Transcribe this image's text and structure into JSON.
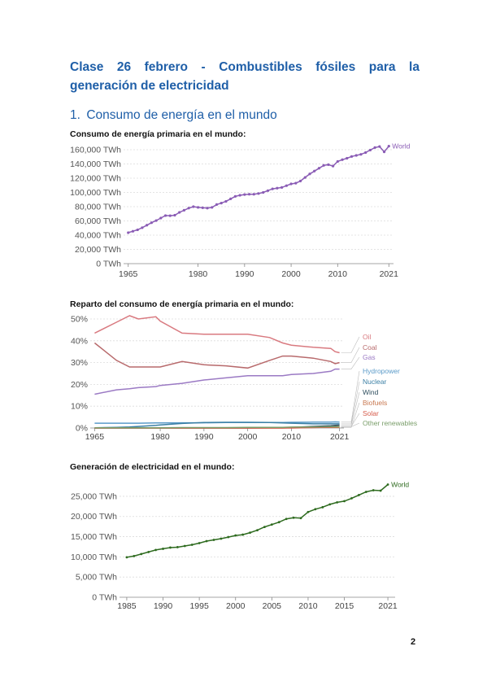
{
  "document": {
    "title": "Clase 26 febrero - Combustibles fósiles para la generación de electricidad",
    "section_number": "1.",
    "section_title": "Consumo de energía en el mundo",
    "page_number": "2"
  },
  "chart_data": [
    {
      "type": "line",
      "title": "Consumo de energía primaria en el mundo:",
      "x": [
        1965,
        1966,
        1967,
        1968,
        1969,
        1970,
        1971,
        1972,
        1973,
        1974,
        1975,
        1976,
        1977,
        1978,
        1979,
        1980,
        1981,
        1982,
        1983,
        1984,
        1985,
        1986,
        1987,
        1988,
        1989,
        1990,
        1991,
        1992,
        1993,
        1994,
        1995,
        1996,
        1997,
        1998,
        1999,
        2000,
        2001,
        2002,
        2003,
        2004,
        2005,
        2006,
        2007,
        2008,
        2009,
        2010,
        2011,
        2012,
        2013,
        2014,
        2015,
        2016,
        2017,
        2018,
        2019,
        2020,
        2021
      ],
      "series": [
        {
          "name": "World",
          "color": "#8a5cb5",
          "values": [
            43500,
            45500,
            47500,
            50500,
            54000,
            57500,
            60500,
            64000,
            67500,
            67300,
            68000,
            72000,
            75000,
            78000,
            80000,
            79000,
            78500,
            78000,
            79000,
            83000,
            85000,
            87500,
            91000,
            94500,
            96000,
            97000,
            97500,
            97500,
            98500,
            100000,
            102500,
            105000,
            106000,
            107000,
            109500,
            112000,
            113000,
            116000,
            121000,
            126000,
            130000,
            134000,
            138000,
            139000,
            137000,
            143500,
            146000,
            148000,
            150500,
            152000,
            153500,
            156000,
            159500,
            163000,
            164500,
            157000,
            165000
          ]
        }
      ],
      "xticks": [
        "1965",
        "1980",
        "1990",
        "2000",
        "2010",
        "2021"
      ],
      "yticks": [
        "0 TWh",
        "20,000 TWh",
        "40,000 TWh",
        "60,000 TWh",
        "80,000 TWh",
        "100,000 TWh",
        "120,000 TWh",
        "140,000 TWh",
        "160,000 TWh"
      ],
      "ylim": [
        0,
        160000
      ],
      "grid": true
    },
    {
      "type": "line",
      "title": "Reparto del consumo de energía primaria en el mundo:",
      "x": [
        1965,
        1970,
        1973,
        1975,
        1979,
        1980,
        1985,
        1990,
        1995,
        2000,
        2005,
        2008,
        2010,
        2015,
        2019,
        2020,
        2021
      ],
      "series": [
        {
          "name": "Oil",
          "color": "#d97a80",
          "values": [
            43.5,
            48.5,
            51.5,
            50,
            51,
            49,
            43.5,
            43,
            43,
            43,
            41.5,
            39,
            38,
            37,
            36.5,
            35,
            34.5
          ]
        },
        {
          "name": "Coal",
          "color": "#b86a6c",
          "values": [
            39,
            31,
            28,
            28,
            28,
            28,
            30.5,
            29,
            28.5,
            27.5,
            31,
            33,
            33,
            32,
            30.5,
            29.5,
            30
          ]
        },
        {
          "name": "Gas",
          "color": "#9b7ac4",
          "values": [
            15.5,
            17.5,
            18,
            18.5,
            19,
            19.5,
            20.5,
            22,
            23,
            24,
            24,
            24,
            24.5,
            25,
            26,
            27,
            27
          ]
        },
        {
          "name": "Hydropower",
          "color": "#5b9bc9",
          "values": [
            2.2,
            2.2,
            2.2,
            2.2,
            2.3,
            2.3,
            2.4,
            2.4,
            2.5,
            2.5,
            2.5,
            2.5,
            2.6,
            2.7,
            2.7,
            2.8,
            2.7
          ]
        },
        {
          "name": "Nuclear",
          "color": "#3a7fa5",
          "values": [
            0.1,
            0.3,
            0.5,
            0.7,
            1.2,
            1.4,
            2.1,
            2.5,
            2.6,
            2.6,
            2.5,
            2.3,
            2.2,
            1.9,
            1.9,
            1.9,
            1.9
          ]
        },
        {
          "name": "Wind",
          "color": "#2f4f5f",
          "values": [
            0,
            0,
            0,
            0,
            0,
            0,
            0,
            0,
            0,
            0,
            0.1,
            0.2,
            0.3,
            0.7,
            1.0,
            1.2,
            1.3
          ]
        },
        {
          "name": "Biofuels",
          "color": "#c87850",
          "values": [
            0,
            0,
            0,
            0,
            0,
            0,
            0,
            0,
            0,
            0,
            0,
            0,
            0.2,
            0.3,
            0.3,
            0.3,
            0.3
          ]
        },
        {
          "name": "Solar",
          "color": "#d65a4a",
          "values": [
            0,
            0,
            0,
            0,
            0,
            0,
            0,
            0,
            0,
            0,
            0,
            0,
            0,
            0.2,
            0.4,
            0.6,
            0.7
          ]
        },
        {
          "name": "Other renewables",
          "color": "#7a9e6a",
          "values": [
            0.1,
            0.1,
            0.1,
            0.1,
            0.1,
            0.1,
            0.2,
            0.2,
            0.2,
            0.3,
            0.3,
            0.3,
            0.4,
            0.5,
            0.6,
            0.6,
            0.6
          ]
        }
      ],
      "xticks": [
        "1965",
        "1980",
        "1990",
        "2000",
        "2010",
        "2021"
      ],
      "yticks": [
        "0%",
        "10%",
        "20%",
        "30%",
        "40%",
        "50%"
      ],
      "ylim": [
        0,
        50
      ],
      "grid": true
    },
    {
      "type": "line",
      "title": "Generación de electricidad en el mundo:",
      "x": [
        1985,
        1986,
        1987,
        1988,
        1989,
        1990,
        1991,
        1992,
        1993,
        1994,
        1995,
        1996,
        1997,
        1998,
        1999,
        2000,
        2001,
        2002,
        2003,
        2004,
        2005,
        2006,
        2007,
        2008,
        2009,
        2010,
        2011,
        2012,
        2013,
        2014,
        2015,
        2016,
        2017,
        2018,
        2019,
        2020,
        2021
      ],
      "series": [
        {
          "name": "World",
          "color": "#2e6b1f",
          "values": [
            9900,
            10200,
            10700,
            11200,
            11700,
            12000,
            12300,
            12400,
            12700,
            13000,
            13400,
            13900,
            14200,
            14500,
            14900,
            15300,
            15500,
            16000,
            16600,
            17400,
            18000,
            18600,
            19400,
            19700,
            19600,
            21100,
            21800,
            22300,
            23000,
            23500,
            23800,
            24500,
            25300,
            26100,
            26500,
            26400,
            27900
          ]
        }
      ],
      "xticks": [
        "1985",
        "1990",
        "1995",
        "2000",
        "2005",
        "2010",
        "2015",
        "2021"
      ],
      "yticks": [
        "0 TWh",
        "5,000 TWh",
        "10,000 TWh",
        "15,000 TWh",
        "20,000 TWh",
        "25,000 TWh"
      ],
      "ylim": [
        0,
        27000
      ],
      "grid": true
    }
  ]
}
